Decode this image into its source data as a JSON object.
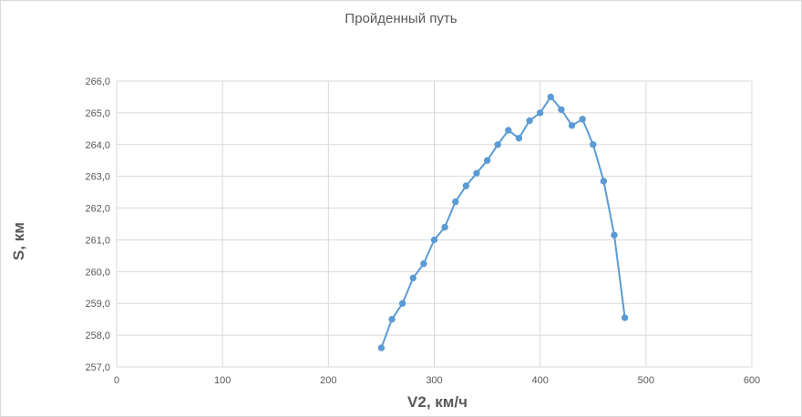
{
  "chart_data": {
    "type": "scatter",
    "title": "Пройденный путь",
    "xlabel": "V2, км/ч",
    "ylabel": "S, км",
    "xlim": [
      0,
      600
    ],
    "ylim": [
      257.0,
      266.0
    ],
    "x_ticks": [
      0,
      100,
      200,
      300,
      400,
      500,
      600
    ],
    "y_ticks": [
      257.0,
      258.0,
      259.0,
      260.0,
      261.0,
      262.0,
      263.0,
      264.0,
      265.0,
      266.0
    ],
    "x_tick_labels": [
      "0",
      "100",
      "200",
      "300",
      "400",
      "500",
      "600"
    ],
    "y_tick_labels": [
      "257,0",
      "258,0",
      "259,0",
      "260,0",
      "261,0",
      "262,0",
      "263,0",
      "264,0",
      "265,0",
      "266,0"
    ],
    "grid": true,
    "legend": "none",
    "series": [
      {
        "color": "#5b9bd5",
        "x": [
          250,
          260,
          270,
          280,
          290,
          300,
          310,
          320,
          330,
          340,
          350,
          360,
          370,
          380,
          390,
          400,
          410,
          420,
          430,
          440,
          450,
          460,
          470,
          480
        ],
        "y": [
          257.6,
          258.5,
          259.0,
          259.8,
          260.25,
          261.0,
          261.4,
          262.2,
          262.7,
          263.1,
          263.5,
          264.0,
          264.45,
          264.2,
          264.75,
          265.0,
          265.5,
          265.1,
          264.6,
          264.8,
          264.0,
          262.85,
          261.15,
          258.55
        ]
      }
    ]
  }
}
